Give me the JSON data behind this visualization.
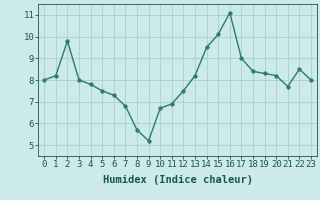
{
  "x": [
    0,
    1,
    2,
    3,
    4,
    5,
    6,
    7,
    8,
    9,
    10,
    11,
    12,
    13,
    14,
    15,
    16,
    17,
    18,
    19,
    20,
    21,
    22,
    23
  ],
  "y": [
    8.0,
    8.2,
    9.8,
    8.0,
    7.8,
    7.5,
    7.3,
    6.8,
    5.7,
    5.2,
    6.7,
    6.9,
    7.5,
    8.2,
    9.5,
    10.1,
    11.1,
    9.0,
    8.4,
    8.3,
    8.2,
    7.7,
    8.5,
    8.0
  ],
  "xlabel": "Humidex (Indice chaleur)",
  "ylim": [
    4.5,
    11.5
  ],
  "xlim": [
    -0.5,
    23.5
  ],
  "yticks": [
    5,
    6,
    7,
    8,
    9,
    10,
    11
  ],
  "xticks": [
    0,
    1,
    2,
    3,
    4,
    5,
    6,
    7,
    8,
    9,
    10,
    11,
    12,
    13,
    14,
    15,
    16,
    17,
    18,
    19,
    20,
    21,
    22,
    23
  ],
  "line_color": "#2d7a6a",
  "marker_color": "#2d7a6a",
  "bg_color": "#cceaea",
  "grid_color": "#aacfcf",
  "tick_label_color": "#1a5555",
  "xlabel_color": "#1a5555",
  "xlabel_fontsize": 7.5,
  "tick_fontsize": 6.5,
  "linewidth": 1.0,
  "markersize": 2.5
}
